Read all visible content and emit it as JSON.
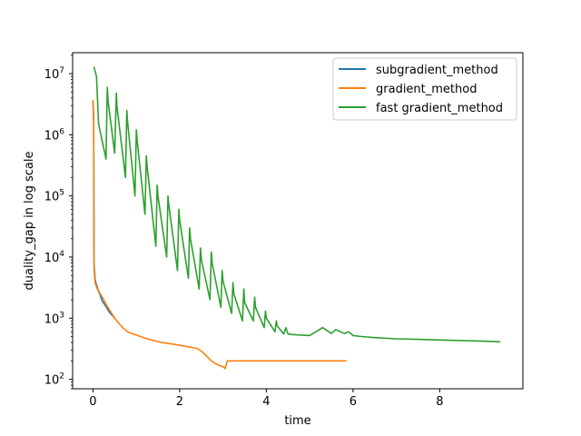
{
  "chart_data": {
    "type": "line",
    "title": "",
    "xlabel": "time",
    "ylabel": "duality_gap in log scale",
    "xlim": [
      -0.47,
      9.92
    ],
    "ylim": [
      70,
      22000000
    ],
    "yscale": "log",
    "grid": false,
    "legend_position": "top-right",
    "xticks": [
      {
        "value": 0,
        "label": "0"
      },
      {
        "value": 2,
        "label": "2"
      },
      {
        "value": 4,
        "label": "4"
      },
      {
        "value": 6,
        "label": "6"
      },
      {
        "value": 8,
        "label": "8"
      }
    ],
    "yticks": [
      {
        "value": 100,
        "base": "10",
        "exp": "2"
      },
      {
        "value": 1000,
        "base": "10",
        "exp": "3"
      },
      {
        "value": 10000,
        "base": "10",
        "exp": "4"
      },
      {
        "value": 100000,
        "base": "10",
        "exp": "5"
      },
      {
        "value": 1000000,
        "base": "10",
        "exp": "6"
      },
      {
        "value": 10000000,
        "base": "10",
        "exp": "7"
      }
    ],
    "series": [
      {
        "name": "subgradient_method",
        "color": "#1f77b4",
        "x": [
          0.0,
          0.015,
          0.025,
          0.03,
          0.05,
          0.07,
          0.1,
          0.13,
          0.16,
          0.2,
          0.25,
          0.3,
          0.35,
          0.4,
          0.45,
          0.5
        ],
        "y": [
          3600000,
          2000000,
          8500,
          6500,
          4300,
          3700,
          3200,
          2700,
          2450,
          2000,
          1750,
          1550,
          1350,
          1200,
          1100,
          1000
        ]
      },
      {
        "name": "gradient_method",
        "color": "#ff7f0e",
        "x": [
          0.0,
          0.015,
          0.025,
          0.03,
          0.05,
          0.1,
          0.2,
          0.3,
          0.4,
          0.5,
          0.6,
          0.7,
          0.8,
          0.9,
          1.0,
          1.2,
          1.4,
          1.6,
          1.8,
          2.0,
          2.2,
          2.4,
          2.5,
          2.6,
          2.7,
          2.8,
          2.9,
          3.0,
          3.05,
          3.1,
          3.2,
          3.5,
          4.0,
          4.5,
          5.0,
          5.5,
          5.85
        ],
        "y": [
          3700000,
          1500000,
          7000,
          5500,
          3800,
          3000,
          2300,
          1700,
          1300,
          1000,
          820,
          680,
          600,
          560,
          530,
          470,
          430,
          400,
          380,
          360,
          340,
          320,
          290,
          250,
          210,
          185,
          170,
          160,
          150,
          200,
          200,
          200,
          200,
          200,
          200,
          200,
          200
        ]
      },
      {
        "name": "fast gradient_method",
        "color": "#2ca02c",
        "x": [
          0.02,
          0.08,
          0.13,
          0.3,
          0.33,
          0.35,
          0.5,
          0.54,
          0.55,
          0.75,
          0.78,
          0.8,
          0.97,
          1.0,
          1.02,
          1.2,
          1.23,
          1.25,
          1.45,
          1.48,
          1.5,
          1.7,
          1.73,
          1.75,
          1.95,
          1.98,
          2.0,
          2.2,
          2.23,
          2.25,
          2.45,
          2.48,
          2.5,
          2.7,
          2.73,
          2.75,
          2.95,
          2.98,
          3.0,
          3.2,
          3.23,
          3.25,
          3.45,
          3.48,
          3.5,
          3.7,
          3.73,
          3.75,
          3.95,
          3.98,
          4.0,
          4.2,
          4.23,
          4.25,
          4.4,
          4.45,
          4.5,
          4.6,
          5.0,
          5.3,
          5.5,
          5.6,
          5.8,
          5.9,
          6.0,
          6.2,
          6.5,
          7.0,
          7.5,
          8.0,
          8.5,
          9.0,
          9.4
        ],
        "y": [
          13000000,
          9000000,
          1500000,
          400000,
          6000000,
          3500000,
          500000,
          4800000,
          3000000,
          200000,
          2500000,
          1600000,
          100000,
          1200000,
          800000,
          50000,
          450000,
          300000,
          15000,
          150000,
          100000,
          10000,
          100000,
          70000,
          6000,
          60000,
          40000,
          4500,
          30000,
          20000,
          3000,
          14000,
          9000,
          2000,
          12000,
          8000,
          1500,
          6000,
          4000,
          1200,
          3800,
          2500,
          900,
          3000,
          1800,
          900,
          2200,
          1500,
          700,
          1300,
          1000,
          600,
          900,
          750,
          550,
          700,
          550,
          540,
          520,
          700,
          560,
          650,
          560,
          600,
          520,
          500,
          480,
          460,
          450,
          440,
          430,
          420,
          410
        ]
      }
    ]
  }
}
